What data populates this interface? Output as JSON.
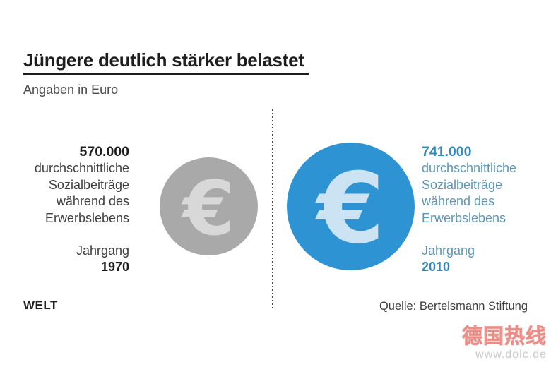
{
  "header": {
    "title": "Jüngere deutlich stärker belastet",
    "subtitle": "Angaben in Euro"
  },
  "chart_data": {
    "type": "pictogram",
    "title": "Jüngere deutlich stärker belastet",
    "subtitle": "Angaben in Euro",
    "unit": "Euro",
    "categories": [
      "Jahrgang 1970",
      "Jahrgang 2010"
    ],
    "values": [
      570000,
      741000
    ],
    "value_labels": [
      "570.000",
      "741.000"
    ],
    "measure": "durchschnittliche Sozialbeiträge während des Erwerbslebens",
    "colors": [
      "#a9a9a9",
      "#2d93d2"
    ],
    "icon": "euro-coin",
    "legend_position": "none",
    "grid": false
  },
  "cohorts": [
    {
      "value_label": "570.000",
      "desc_lines": [
        "durchschnittliche",
        "Sozialbeiträge",
        "während des",
        "Erwerbslebens"
      ],
      "cohort_label": "Jahrgang",
      "year": "1970"
    },
    {
      "value_label": "741.000",
      "desc_lines": [
        "durchschnittliche",
        "Sozialbeiträge",
        "während des",
        "Erwerbslebens"
      ],
      "cohort_label": "Jahrgang",
      "year": "2010"
    }
  ],
  "icons": {
    "euro": "€"
  },
  "footer": {
    "logo": "WELT",
    "source": "Quelle: Bertelsmann Stiftung"
  },
  "watermark": {
    "text": "德国热线",
    "url": "www.dolc.de"
  }
}
